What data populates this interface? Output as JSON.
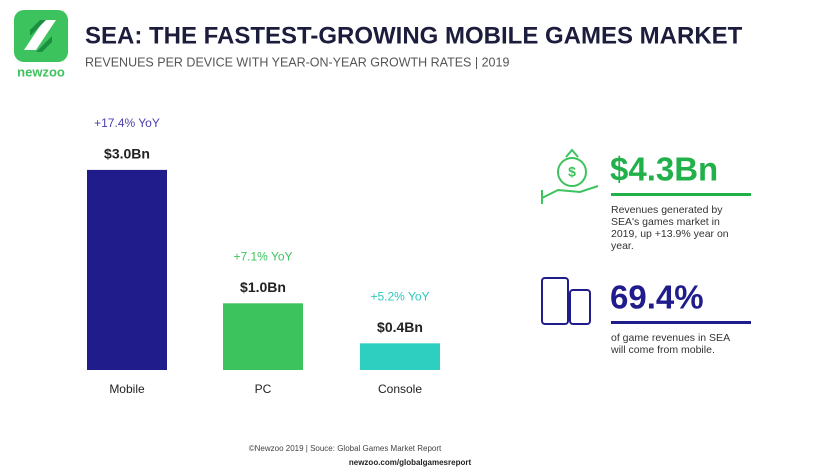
{
  "header": {
    "logo": "newzoo",
    "title": "SEA: THE FASTEST-GROWING MOBILE GAMES MARKET",
    "subtitle": "REVENUES PER DEVICE WITH YEAR-ON-YEAR GROWTH RATES | 2019"
  },
  "chart_data": {
    "type": "bar",
    "categories": [
      "Mobile",
      "PC",
      "Console"
    ],
    "values": [
      3.0,
      1.0,
      0.4
    ],
    "value_labels": [
      "$3.0Bn",
      "$1.0Bn",
      "$0.4Bn"
    ],
    "annotations": [
      "+17.4% YoY",
      "+7.1% YoY",
      "+5.2% YoY"
    ],
    "colors": [
      "#201c8c",
      "#3dc35e",
      "#2ecfc0"
    ],
    "annotation_colors": [
      "#4a3fae",
      "#3dc35e",
      "#2ec9bb"
    ]
  },
  "stats": [
    {
      "value": "$4.3Bn",
      "color": "#22b04b",
      "lines": [
        "Revenues generated by",
        "SEA's games market in",
        "2019, up +13.9% year on",
        "year."
      ]
    },
    {
      "value": "69.4%",
      "color": "#201c8c",
      "lines": [
        "of game revenues in SEA",
        "will come from mobile."
      ]
    }
  ],
  "footer": {
    "source": "©Newzoo 2019 | Souce: Global Games Market Report",
    "url": "newzoo.com/globalgamesreport"
  }
}
